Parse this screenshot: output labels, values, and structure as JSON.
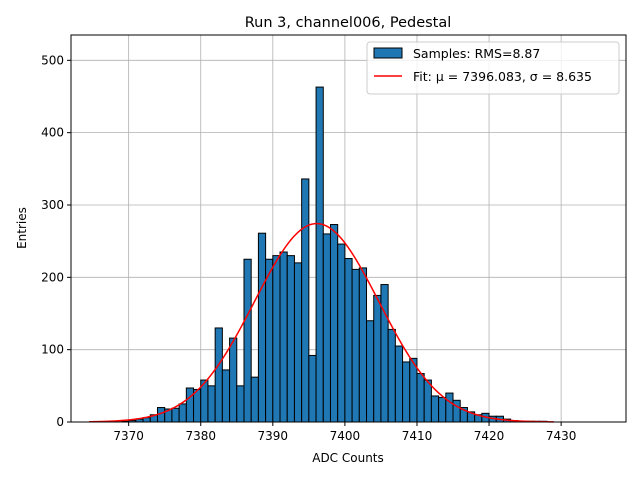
{
  "chart_data": {
    "type": "bar",
    "title": "Run 3, channel006, Pedestal",
    "xlabel": "ADC Counts",
    "ylabel": "Entries",
    "xlim": [
      7362,
      7439
    ],
    "ylim": [
      0,
      535
    ],
    "xticks": [
      7370,
      7380,
      7390,
      7400,
      7410,
      7420,
      7430
    ],
    "yticks": [
      0,
      100,
      200,
      300,
      400,
      500
    ],
    "grid": true,
    "legend_position": "top-right",
    "bin_width": 1,
    "bins": {
      "x": [
        7369,
        7370,
        7371,
        7372,
        7373,
        7374,
        7375,
        7376,
        7377,
        7378,
        7379,
        7380,
        7381,
        7382,
        7383,
        7384,
        7385,
        7386,
        7387,
        7388,
        7389,
        7390,
        7391,
        7392,
        7393,
        7394,
        7395,
        7396,
        7397,
        7398,
        7399,
        7400,
        7401,
        7402,
        7403,
        7404,
        7405,
        7406,
        7407,
        7408,
        7409,
        7410,
        7411,
        7412,
        7413,
        7414,
        7415,
        7416,
        7417,
        7418,
        7419,
        7420,
        7421,
        7422,
        7423,
        7424,
        7425,
        7426,
        7427,
        7428
      ],
      "y": [
        1,
        2,
        4,
        6,
        10,
        20,
        18,
        19,
        25,
        47,
        45,
        58,
        50,
        130,
        72,
        116,
        50,
        225,
        62,
        261,
        225,
        230,
        235,
        230,
        220,
        336,
        92,
        463,
        260,
        273,
        246,
        226,
        211,
        213,
        140,
        175,
        190,
        128,
        105,
        83,
        88,
        67,
        58,
        36,
        34,
        40,
        30,
        20,
        14,
        10,
        12,
        8,
        8,
        4,
        2,
        1,
        1,
        1,
        1,
        0
      ],
      "color": "#1f77b4",
      "edgecolor": "#000000"
    },
    "fit": {
      "mu": 7396.083,
      "sigma": 8.635,
      "x_range": [
        7364.5,
        7429
      ],
      "color": "#ff0000"
    },
    "legend": [
      {
        "label": "Samples: RMS=8.87",
        "kind": "patch",
        "color": "#1f77b4"
      },
      {
        "label": "Fit: μ = 7396.083, σ = 8.635",
        "kind": "line",
        "color": "#ff0000"
      }
    ]
  }
}
